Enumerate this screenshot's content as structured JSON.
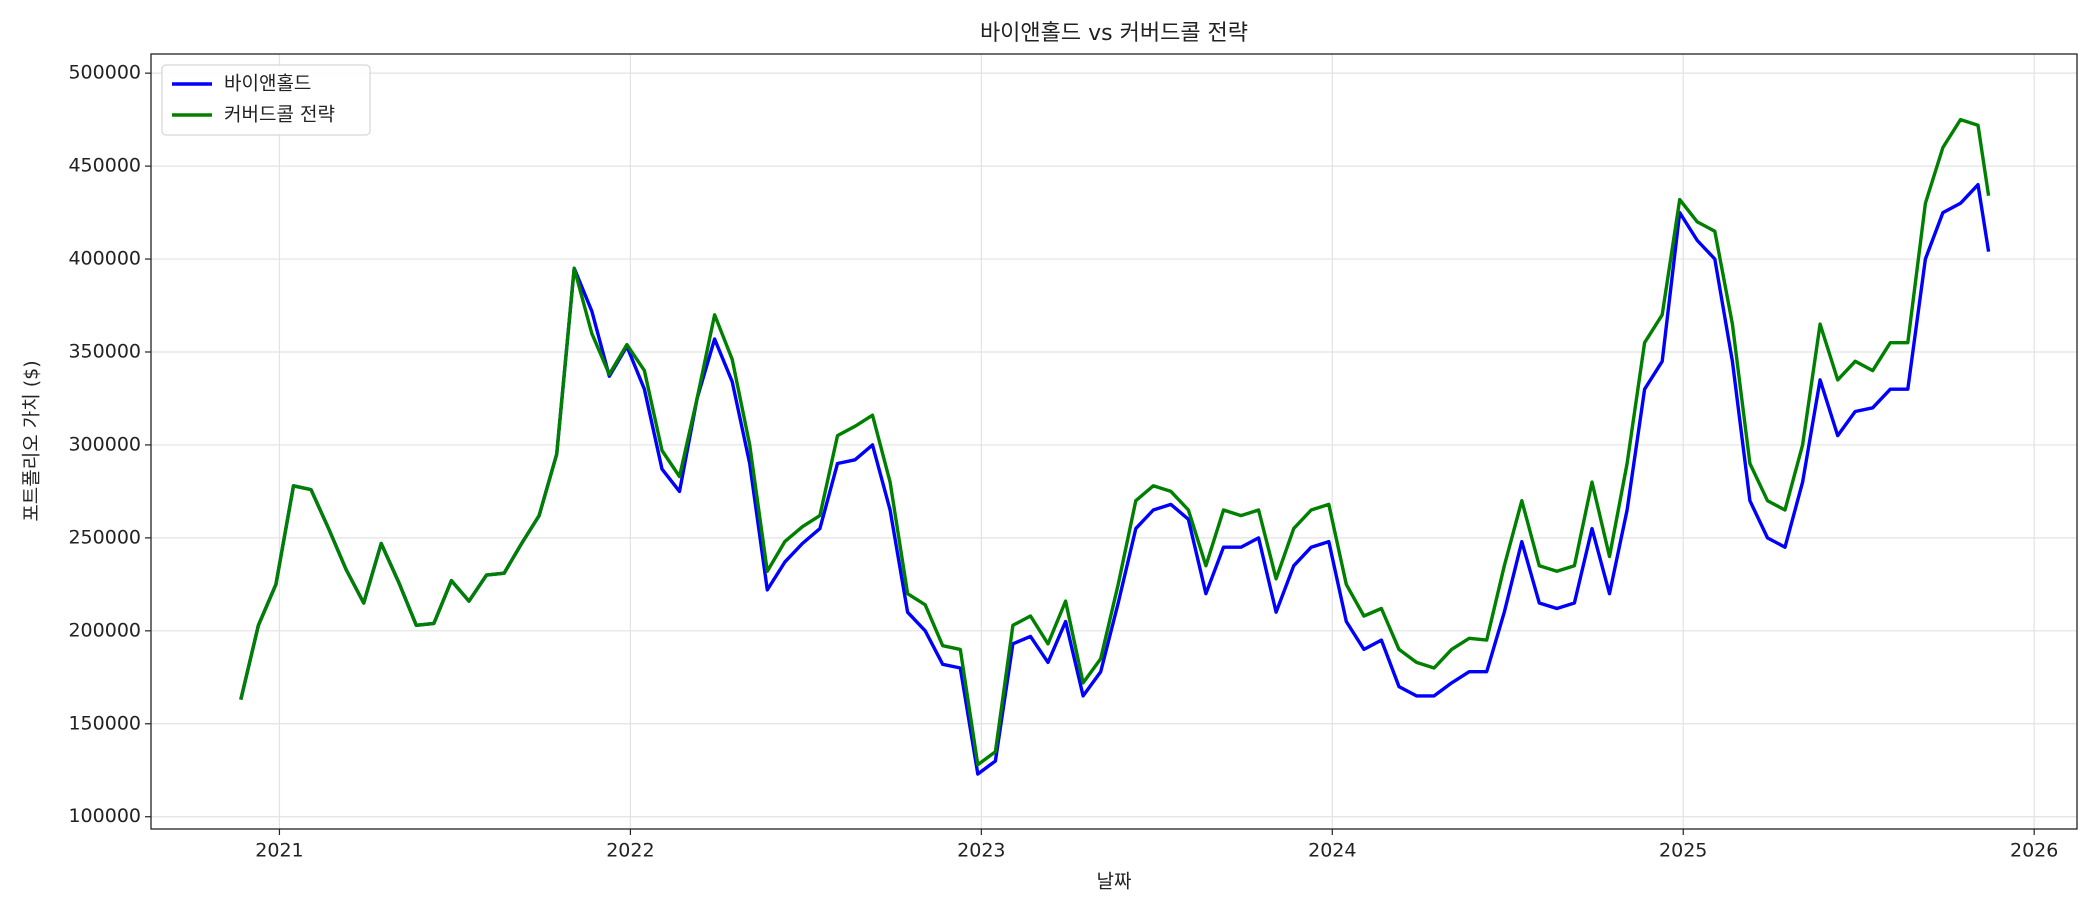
{
  "chart_data": {
    "type": "line",
    "title": "바이앤홀드 vs 커버드콜 전략",
    "xlabel": "날짜",
    "ylabel": "포트폴리오 가치 ($)",
    "x": [
      2020.89,
      2020.94,
      2020.99,
      2021.04,
      2021.09,
      2021.14,
      2021.19,
      2021.24,
      2021.29,
      2021.34,
      2021.39,
      2021.44,
      2021.49,
      2021.54,
      2021.59,
      2021.64,
      2021.69,
      2021.74,
      2021.79,
      2021.84,
      2021.89,
      2021.94,
      2021.99,
      2022.04,
      2022.09,
      2022.14,
      2022.19,
      2022.24,
      2022.29,
      2022.34,
      2022.39,
      2022.44,
      2022.49,
      2022.54,
      2022.59,
      2022.64,
      2022.69,
      2022.74,
      2022.79,
      2022.84,
      2022.89,
      2022.94,
      2022.99,
      2023.04,
      2023.09,
      2023.14,
      2023.19,
      2023.24,
      2023.29,
      2023.34,
      2023.39,
      2023.44,
      2023.49,
      2023.54,
      2023.59,
      2023.64,
      2023.69,
      2023.74,
      2023.79,
      2023.84,
      2023.89,
      2023.94,
      2023.99,
      2024.04,
      2024.09,
      2024.14,
      2024.19,
      2024.24,
      2024.29,
      2024.34,
      2024.39,
      2024.44,
      2024.49,
      2024.54,
      2024.59,
      2024.64,
      2024.69,
      2024.74,
      2024.79,
      2024.84,
      2024.89,
      2024.94,
      2024.99,
      2025.04,
      2025.09,
      2025.14,
      2025.19,
      2025.24,
      2025.29,
      2025.34,
      2025.39,
      2025.44,
      2025.49,
      2025.54,
      2025.59,
      2025.64,
      2025.69,
      2025.74,
      2025.79,
      2025.84,
      2025.87
    ],
    "series": [
      {
        "name": "바이앤홀드",
        "color": "#0000ff",
        "values": [
          163000,
          203000,
          225000,
          278000,
          276000,
          255000,
          233000,
          215000,
          247000,
          226000,
          203000,
          204000,
          227000,
          216000,
          230000,
          231000,
          247000,
          262000,
          295000,
          395000,
          372000,
          337000,
          353000,
          330000,
          287000,
          275000,
          325000,
          357000,
          334000,
          290000,
          222000,
          237000,
          247000,
          255000,
          290000,
          292000,
          300000,
          265000,
          210000,
          200000,
          182000,
          180000,
          123000,
          130000,
          193000,
          197000,
          183000,
          205000,
          165000,
          178000,
          215000,
          255000,
          265000,
          268000,
          260000,
          220000,
          245000,
          245000,
          250000,
          210000,
          235000,
          245000,
          248000,
          205000,
          190000,
          195000,
          170000,
          165000,
          165000,
          172000,
          178000,
          178000,
          210000,
          248000,
          215000,
          212000,
          215000,
          255000,
          220000,
          265000,
          330000,
          345000,
          425000,
          410000,
          400000,
          345000,
          270000,
          250000,
          245000,
          280000,
          335000,
          305000,
          318000,
          320000,
          330000,
          330000,
          400000,
          425000,
          430000,
          440000,
          404000
        ]
      },
      {
        "name": "커버드콜 전략",
        "color": "#008000",
        "values": [
          163000,
          203000,
          225000,
          278000,
          276000,
          255000,
          233000,
          215000,
          247000,
          226000,
          203000,
          204000,
          227000,
          216000,
          230000,
          231000,
          247000,
          262000,
          295000,
          395000,
          360000,
          338000,
          354000,
          340000,
          297000,
          283000,
          325000,
          370000,
          346000,
          300000,
          232000,
          248000,
          256000,
          262000,
          305000,
          310000,
          316000,
          280000,
          220000,
          214000,
          192000,
          190000,
          128000,
          135000,
          203000,
          208000,
          193000,
          216000,
          172000,
          185000,
          225000,
          270000,
          278000,
          275000,
          265000,
          235000,
          265000,
          262000,
          265000,
          228000,
          255000,
          265000,
          268000,
          225000,
          208000,
          212000,
          190000,
          183000,
          180000,
          190000,
          196000,
          195000,
          235000,
          270000,
          235000,
          232000,
          235000,
          280000,
          240000,
          290000,
          355000,
          370000,
          432000,
          420000,
          415000,
          365000,
          290000,
          270000,
          265000,
          300000,
          365000,
          335000,
          345000,
          340000,
          355000,
          355000,
          430000,
          460000,
          475000,
          472000,
          434000
        ]
      }
    ],
    "xlim": [
      2020.634,
      2026.122
    ],
    "xticks": [
      2021,
      2022,
      2023,
      2024,
      2025,
      2026
    ],
    "ylim": [
      93400,
      510300
    ],
    "yticks": [
      100000,
      150000,
      200000,
      250000,
      300000,
      350000,
      400000,
      450000,
      500000
    ],
    "grid": true,
    "legend": "upper left"
  }
}
